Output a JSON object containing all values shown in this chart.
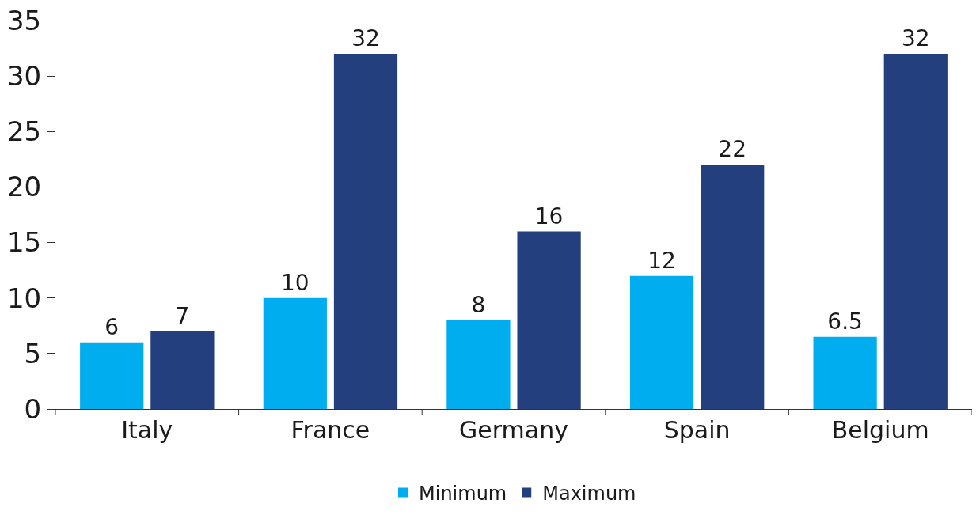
{
  "chart_data": {
    "type": "bar",
    "categories": [
      "Italy",
      "France",
      "Germany",
      "Spain",
      "Belgium"
    ],
    "series": [
      {
        "name": "Minimum",
        "color": "#00aeef",
        "values": [
          6,
          10,
          8,
          12,
          6.5
        ]
      },
      {
        "name": "Maximum",
        "color": "#233f7d",
        "values": [
          7,
          32,
          16,
          22,
          32
        ]
      }
    ],
    "ylim": [
      0,
      35
    ],
    "yticks": [
      0,
      5,
      10,
      15,
      20,
      25,
      30,
      35
    ],
    "data_labels": true,
    "legend": "bottom"
  }
}
